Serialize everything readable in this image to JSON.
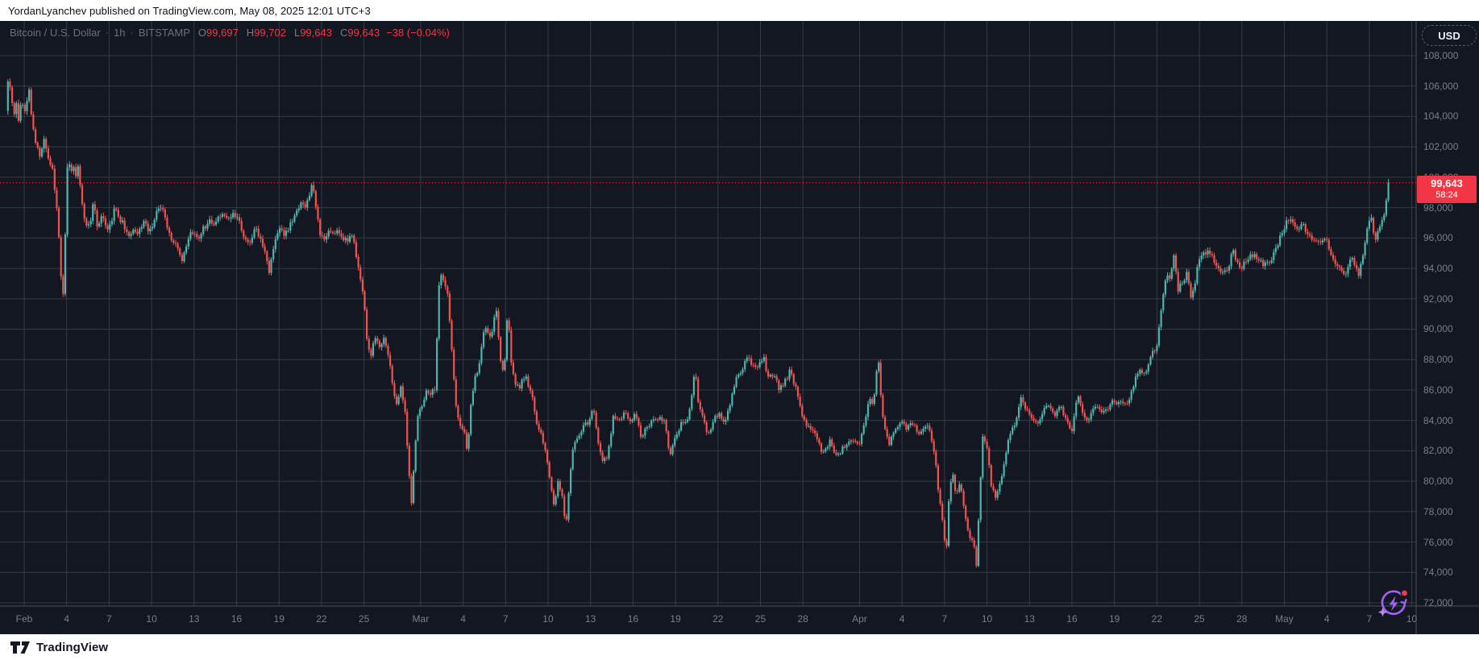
{
  "attribution": "YordanLyanchev published on TradingView.com, May 08, 2025 12:01 UTC+3",
  "footer": {
    "brand": "TradingView"
  },
  "toolbar": {
    "currency_label": "USD"
  },
  "legend": {
    "symbol": "Bitcoin / U.S. Dollar",
    "separator": "·",
    "interval": "1h",
    "exchange": "BITSTAMP",
    "ohlc": [
      {
        "label": "O",
        "value": "99,697"
      },
      {
        "label": "H",
        "value": "99,702"
      },
      {
        "label": "L",
        "value": "99,643"
      },
      {
        "label": "C",
        "value": "99,643"
      }
    ],
    "change": "−38 (−0.04%)"
  },
  "price_scale": {
    "labels": [
      "108,000",
      "106,000",
      "104,000",
      "102,000",
      "100,000",
      "98,000",
      "96,000",
      "94,000",
      "92,000",
      "90,000",
      "88,000",
      "86,000",
      "84,000",
      "82,000",
      "80,000",
      "78,000",
      "76,000",
      "74,000",
      "72,000"
    ],
    "tick_values": [
      108000,
      106000,
      104000,
      102000,
      100000,
      98000,
      96000,
      94000,
      92000,
      90000,
      88000,
      86000,
      84000,
      82000,
      80000,
      78000,
      76000,
      74000,
      72000
    ],
    "last_price_label": "99,643",
    "countdown": "58:24"
  },
  "time_scale": {
    "labels": [
      "Feb",
      "4",
      "7",
      "10",
      "13",
      "16",
      "19",
      "22",
      "25",
      "Mar",
      "4",
      "7",
      "10",
      "13",
      "16",
      "19",
      "22",
      "25",
      "28",
      "Apr",
      "4",
      "7",
      "10",
      "13",
      "16",
      "19",
      "22",
      "25",
      "28",
      "May",
      "4",
      "7",
      "10"
    ],
    "tick_days": [
      0,
      3,
      6,
      9,
      12,
      15,
      18,
      21,
      24,
      28,
      31,
      34,
      37,
      40,
      43,
      46,
      49,
      52,
      55,
      59,
      62,
      65,
      68,
      71,
      74,
      77,
      80,
      83,
      86,
      89,
      92,
      95,
      98
    ]
  },
  "colors": {
    "background": "#131722",
    "grid": "#363a45",
    "axis_border": "#4c4f5a",
    "axis_text": "#7a7e89",
    "up": "#4db6ac",
    "down": "#ef5350",
    "accent_red": "#f23645",
    "icon_purple": "#a163f1"
  },
  "chart_data": {
    "type": "candlestick",
    "symbol": "Bitcoin / U.S. Dollar",
    "exchange": "BITSTAMP",
    "timeframe": "1h",
    "last_price": 99643,
    "last_change": -38,
    "last_change_pct": -0.04,
    "y_axis_range": [
      70600,
      109300
    ],
    "price_line_value": 99643,
    "x_axis_note": "days measured from Feb 1, 2025",
    "price_anchors_k": [
      [
        -1.3,
        104.6
      ],
      [
        -1.15,
        106.3
      ],
      [
        -0.9,
        105.2
      ],
      [
        -0.75,
        103.6
      ],
      [
        -0.55,
        104.9
      ],
      [
        -0.4,
        103.8
      ],
      [
        -0.2,
        105.3
      ],
      [
        0.1,
        104.3
      ],
      [
        0.3,
        106.0
      ],
      [
        0.5,
        104.1
      ],
      [
        0.8,
        102.2
      ],
      [
        1.1,
        101.5
      ],
      [
        1.4,
        102.4
      ],
      [
        1.7,
        101.0
      ],
      [
        2.0,
        100.6
      ],
      [
        2.2,
        99.0
      ],
      [
        2.45,
        96.2
      ],
      [
        2.6,
        93.5
      ],
      [
        2.72,
        91.7
      ],
      [
        2.85,
        95.0
      ],
      [
        3.0,
        98.5
      ],
      [
        3.1,
        102.6
      ],
      [
        3.25,
        99.6
      ],
      [
        3.45,
        101.3
      ],
      [
        3.6,
        99.8
      ],
      [
        3.8,
        100.9
      ],
      [
        4.0,
        99.3
      ],
      [
        4.2,
        97.6
      ],
      [
        4.45,
        96.4
      ],
      [
        4.7,
        97.3
      ],
      [
        4.9,
        98.4
      ],
      [
        5.2,
        96.6
      ],
      [
        5.5,
        97.6
      ],
      [
        5.8,
        96.4
      ],
      [
        6.1,
        96.8
      ],
      [
        6.4,
        98.3
      ],
      [
        6.7,
        97.4
      ],
      [
        7.0,
        96.8
      ],
      [
        7.3,
        96.0
      ],
      [
        7.7,
        96.5
      ],
      [
        8.0,
        96.3
      ],
      [
        8.4,
        96.9
      ],
      [
        8.8,
        96.4
      ],
      [
        9.2,
        97.4
      ],
      [
        9.5,
        98.1
      ],
      [
        9.8,
        97.6
      ],
      [
        10.2,
        96.4
      ],
      [
        10.5,
        95.7
      ],
      [
        10.9,
        95.3
      ],
      [
        11.2,
        94.2
      ],
      [
        11.5,
        95.9
      ],
      [
        11.9,
        96.5
      ],
      [
        12.3,
        95.9
      ],
      [
        12.7,
        96.6
      ],
      [
        13.1,
        97.4
      ],
      [
        13.5,
        96.9
      ],
      [
        13.9,
        97.5
      ],
      [
        14.3,
        97.3
      ],
      [
        14.7,
        97.6
      ],
      [
        15.1,
        97.2
      ],
      [
        15.5,
        96.1
      ],
      [
        15.9,
        95.7
      ],
      [
        16.3,
        96.6
      ],
      [
        16.7,
        95.9
      ],
      [
        17.0,
        95.3
      ],
      [
        17.3,
        93.9
      ],
      [
        17.6,
        95.4
      ],
      [
        18.0,
        96.6
      ],
      [
        18.4,
        96.3
      ],
      [
        18.8,
        96.9
      ],
      [
        19.2,
        97.4
      ],
      [
        19.5,
        98.4
      ],
      [
        19.8,
        98.2
      ],
      [
        20.1,
        98.9
      ],
      [
        20.35,
        99.4
      ],
      [
        20.6,
        98.0
      ],
      [
        20.9,
        96.2
      ],
      [
        21.2,
        95.8
      ],
      [
        21.5,
        96.7
      ],
      [
        21.9,
        96.2
      ],
      [
        22.3,
        96.5
      ],
      [
        22.7,
        95.9
      ],
      [
        23.1,
        96.2
      ],
      [
        23.4,
        95.1
      ],
      [
        23.7,
        93.6
      ],
      [
        24.0,
        91.9
      ],
      [
        24.25,
        88.6
      ],
      [
        24.5,
        88.3
      ],
      [
        24.8,
        89.5
      ],
      [
        25.1,
        88.8
      ],
      [
        25.4,
        89.4
      ],
      [
        25.7,
        88.4
      ],
      [
        26.0,
        86.4
      ],
      [
        26.3,
        84.9
      ],
      [
        26.6,
        86.3
      ],
      [
        26.9,
        84.5
      ],
      [
        27.2,
        80.1
      ],
      [
        27.35,
        78.6
      ],
      [
        27.55,
        81.2
      ],
      [
        27.8,
        84.5
      ],
      [
        28.1,
        84.9
      ],
      [
        28.4,
        86.1
      ],
      [
        28.7,
        85.6
      ],
      [
        29.0,
        86.0
      ],
      [
        29.2,
        90.5
      ],
      [
        29.35,
        94.2
      ],
      [
        29.6,
        93.3
      ],
      [
        29.9,
        92.2
      ],
      [
        30.2,
        88.5
      ],
      [
        30.5,
        85.0
      ],
      [
        30.8,
        83.6
      ],
      [
        31.1,
        83.2
      ],
      [
        31.3,
        81.5
      ],
      [
        31.6,
        85.6
      ],
      [
        31.9,
        87.1
      ],
      [
        32.2,
        88.0
      ],
      [
        32.5,
        90.3
      ],
      [
        32.8,
        89.4
      ],
      [
        33.1,
        90.0
      ],
      [
        33.3,
        91.9
      ],
      [
        33.6,
        88.2
      ],
      [
        33.9,
        86.9
      ],
      [
        34.15,
        91.2
      ],
      [
        34.4,
        88.0
      ],
      [
        34.7,
        86.6
      ],
      [
        35.0,
        86.3
      ],
      [
        35.4,
        86.8
      ],
      [
        35.8,
        85.9
      ],
      [
        36.2,
        83.9
      ],
      [
        36.6,
        82.7
      ],
      [
        37.0,
        80.9
      ],
      [
        37.4,
        78.6
      ],
      [
        37.7,
        79.9
      ],
      [
        38.0,
        78.9
      ],
      [
        38.25,
        76.7
      ],
      [
        38.5,
        80.0
      ],
      [
        38.75,
        82.3
      ],
      [
        39.1,
        82.9
      ],
      [
        39.5,
        83.6
      ],
      [
        39.9,
        83.9
      ],
      [
        40.2,
        84.9
      ],
      [
        40.5,
        82.9
      ],
      [
        40.8,
        81.1
      ],
      [
        41.2,
        81.6
      ],
      [
        41.6,
        84.3
      ],
      [
        42.0,
        83.8
      ],
      [
        42.4,
        84.4
      ],
      [
        42.8,
        84.1
      ],
      [
        43.2,
        84.5
      ],
      [
        43.6,
        82.7
      ],
      [
        44.0,
        83.7
      ],
      [
        44.4,
        84.1
      ],
      [
        44.8,
        83.9
      ],
      [
        45.2,
        84.1
      ],
      [
        45.6,
        81.8
      ],
      [
        46.0,
        82.8
      ],
      [
        46.4,
        83.7
      ],
      [
        46.8,
        84.1
      ],
      [
        47.1,
        85.0
      ],
      [
        47.35,
        87.4
      ],
      [
        47.6,
        85.1
      ],
      [
        47.9,
        84.3
      ],
      [
        48.3,
        83.2
      ],
      [
        48.7,
        83.9
      ],
      [
        49.1,
        84.4
      ],
      [
        49.5,
        83.9
      ],
      [
        49.9,
        85.2
      ],
      [
        50.3,
        86.6
      ],
      [
        50.7,
        87.5
      ],
      [
        51.0,
        88.3
      ],
      [
        51.4,
        87.7
      ],
      [
        51.8,
        87.4
      ],
      [
        52.2,
        88.4
      ],
      [
        52.5,
        87.0
      ],
      [
        52.9,
        86.8
      ],
      [
        53.3,
        86.2
      ],
      [
        53.7,
        86.6
      ],
      [
        54.1,
        87.2
      ],
      [
        54.5,
        86.0
      ],
      [
        54.9,
        84.6
      ],
      [
        55.3,
        83.6
      ],
      [
        55.7,
        83.2
      ],
      [
        56.1,
        82.5
      ],
      [
        56.5,
        81.9
      ],
      [
        56.9,
        82.6
      ],
      [
        57.3,
        81.8
      ],
      [
        57.7,
        82.1
      ],
      [
        58.1,
        82.4
      ],
      [
        58.5,
        82.7
      ],
      [
        58.9,
        82.4
      ],
      [
        59.3,
        83.5
      ],
      [
        59.7,
        85.4
      ],
      [
        60.0,
        85.1
      ],
      [
        60.3,
        88.4
      ],
      [
        60.55,
        85.0
      ],
      [
        60.8,
        83.3
      ],
      [
        61.1,
        82.4
      ],
      [
        61.5,
        83.4
      ],
      [
        61.9,
        84.0
      ],
      [
        62.3,
        83.3
      ],
      [
        62.7,
        83.8
      ],
      [
        63.1,
        83.4
      ],
      [
        63.5,
        83.2
      ],
      [
        63.9,
        83.5
      ],
      [
        64.3,
        82.0
      ],
      [
        64.6,
        79.1
      ],
      [
        64.9,
        77.2
      ],
      [
        65.1,
        74.7
      ],
      [
        65.3,
        78.6
      ],
      [
        65.55,
        80.7
      ],
      [
        65.8,
        79.3
      ],
      [
        66.1,
        79.8
      ],
      [
        66.4,
        77.8
      ],
      [
        66.7,
        76.4
      ],
      [
        67.0,
        76.3
      ],
      [
        67.25,
        74.6
      ],
      [
        67.5,
        79.5
      ],
      [
        67.7,
        82.8
      ],
      [
        68.0,
        82.2
      ],
      [
        68.3,
        79.9
      ],
      [
        68.6,
        78.9
      ],
      [
        68.9,
        79.7
      ],
      [
        69.2,
        80.9
      ],
      [
        69.6,
        83.3
      ],
      [
        70.0,
        83.8
      ],
      [
        70.4,
        85.3
      ],
      [
        70.8,
        84.7
      ],
      [
        71.2,
        84.1
      ],
      [
        71.6,
        83.9
      ],
      [
        72.0,
        84.6
      ],
      [
        72.4,
        85.1
      ],
      [
        72.8,
        84.4
      ],
      [
        73.2,
        84.8
      ],
      [
        73.6,
        84.1
      ],
      [
        74.0,
        83.5
      ],
      [
        74.4,
        85.5
      ],
      [
        74.8,
        84.2
      ],
      [
        75.2,
        84.1
      ],
      [
        75.6,
        85.0
      ],
      [
        76.0,
        84.6
      ],
      [
        76.4,
        84.8
      ],
      [
        76.8,
        85.3
      ],
      [
        77.2,
        85.1
      ],
      [
        77.6,
        85.3
      ],
      [
        78.0,
        85.2
      ],
      [
        78.4,
        86.4
      ],
      [
        78.8,
        87.3
      ],
      [
        79.2,
        87.1
      ],
      [
        79.6,
        88.4
      ],
      [
        80.0,
        88.8
      ],
      [
        80.3,
        91.4
      ],
      [
        80.6,
        93.5
      ],
      [
        80.9,
        93.3
      ],
      [
        81.2,
        94.6
      ],
      [
        81.5,
        92.6
      ],
      [
        81.8,
        93.2
      ],
      [
        82.1,
        93.8
      ],
      [
        82.4,
        92.1
      ],
      [
        82.7,
        93.1
      ],
      [
        83.0,
        94.8
      ],
      [
        83.4,
        95.2
      ],
      [
        83.8,
        94.7
      ],
      [
        84.2,
        94.3
      ],
      [
        84.6,
        93.9
      ],
      [
        85.0,
        93.7
      ],
      [
        85.3,
        95.3
      ],
      [
        85.6,
        94.5
      ],
      [
        86.0,
        94.2
      ],
      [
        86.4,
        94.6
      ],
      [
        86.8,
        94.9
      ],
      [
        87.2,
        94.6
      ],
      [
        87.6,
        94.3
      ],
      [
        88.0,
        94.2
      ],
      [
        88.4,
        95.4
      ],
      [
        88.8,
        96.5
      ],
      [
        89.2,
        96.9
      ],
      [
        89.5,
        97.4
      ],
      [
        89.8,
        96.6
      ],
      [
        90.2,
        96.9
      ],
      [
        90.5,
        96.5
      ],
      [
        90.9,
        95.9
      ],
      [
        91.3,
        96.1
      ],
      [
        91.7,
        95.8
      ],
      [
        92.1,
        95.5
      ],
      [
        92.5,
        94.4
      ],
      [
        92.9,
        94.1
      ],
      [
        93.3,
        93.6
      ],
      [
        93.7,
        94.7
      ],
      [
        94.0,
        94.4
      ],
      [
        94.3,
        93.5
      ],
      [
        94.6,
        95.2
      ],
      [
        94.9,
        96.9
      ],
      [
        95.1,
        97.6
      ],
      [
        95.35,
        96.0
      ],
      [
        95.6,
        96.4
      ],
      [
        95.9,
        96.9
      ],
      [
        96.1,
        97.8
      ],
      [
        96.25,
        98.6
      ],
      [
        96.38,
        99.4
      ],
      [
        96.45,
        99.643
      ]
    ]
  }
}
